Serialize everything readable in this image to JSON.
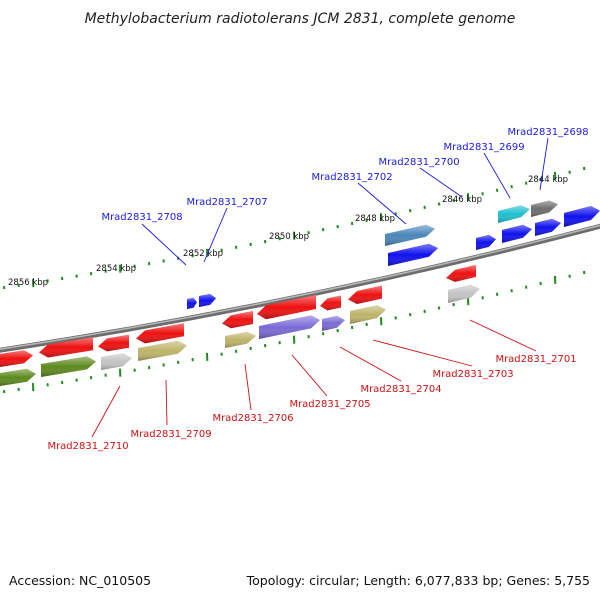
{
  "title": "Methylobacterium radiotolerans JCM 2831, complete genome",
  "footer": {
    "accession": "Accession: NC_010505",
    "summary": "Topology: circular; Length: 6,077,833 bp; Genes: 5,755"
  },
  "scale_labels": [
    "2856 kbp",
    "2854 kbp",
    "2852 kbp",
    "2850 kbp",
    "2848 kbp",
    "2846 kbp",
    "2844 kbp"
  ],
  "top_genes": [
    "Mrad2831_2708",
    "Mrad2831_2707",
    "Mrad2831_2702",
    "Mrad2831_2700",
    "Mrad2831_2699",
    "Mrad2831_2698"
  ],
  "bottom_genes": [
    "Mrad2831_2710",
    "Mrad2831_2709",
    "Mrad2831_2706",
    "Mrad2831_2705",
    "Mrad2831_2704",
    "Mrad2831_2703",
    "Mrad2831_2701"
  ],
  "colors": {
    "red": "#ee1111",
    "blue": "#1111ee",
    "olive": "#5d8a1e",
    "khaki": "#bdb46a",
    "grey": "#c4c4c4",
    "purple": "#7a6ad6",
    "steelblue": "#4a86b8",
    "cyan": "#1fc0d0",
    "darkgrey": "#6e6e6e",
    "tick": "#1f8a1f",
    "backbone": "#8a8a8a"
  }
}
